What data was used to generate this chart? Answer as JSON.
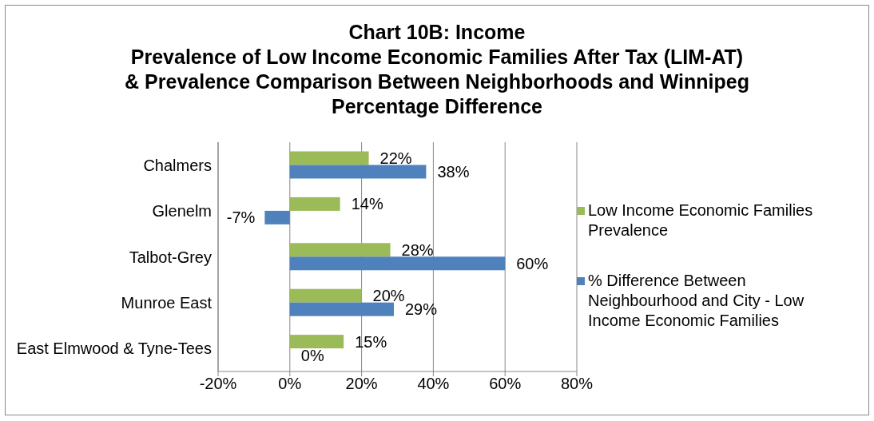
{
  "chart_data": {
    "type": "bar",
    "orientation": "horizontal",
    "title": "Chart 10B: Income\nPrevalence of Low Income Economic Families After Tax (LIM-AT)\n& Prevalence Comparison Between Neighborhoods and Winnipeg\nPercentage Difference",
    "categories": [
      "Chalmers",
      "Glenelm",
      "Talbot-Grey",
      "Munroe East",
      "East Elmwood & Tyne-Tees"
    ],
    "series": [
      {
        "name": "Low Income Economic Families Prevalence",
        "color": "#9bbb59",
        "values": [
          22,
          14,
          28,
          20,
          15
        ],
        "value_labels": [
          "22%",
          "14%",
          "28%",
          "20%",
          "15%"
        ]
      },
      {
        "name": "% Difference Between Neighbourhood and City - Low Income Economic Families",
        "color": "#4f81bd",
        "values": [
          38,
          -7,
          60,
          29,
          0
        ],
        "value_labels": [
          "38%",
          "-7%",
          "60%",
          "29%",
          "0%"
        ]
      }
    ],
    "xlim": [
      -20,
      80
    ],
    "xticks": [
      {
        "value": -20,
        "label": "-20%"
      },
      {
        "value": 0,
        "label": "0%"
      },
      {
        "value": 20,
        "label": "20%"
      },
      {
        "value": 40,
        "label": "40%"
      },
      {
        "value": 60,
        "label": "60%"
      },
      {
        "value": 80,
        "label": "80%"
      }
    ],
    "grid": "x",
    "legend": "right"
  }
}
